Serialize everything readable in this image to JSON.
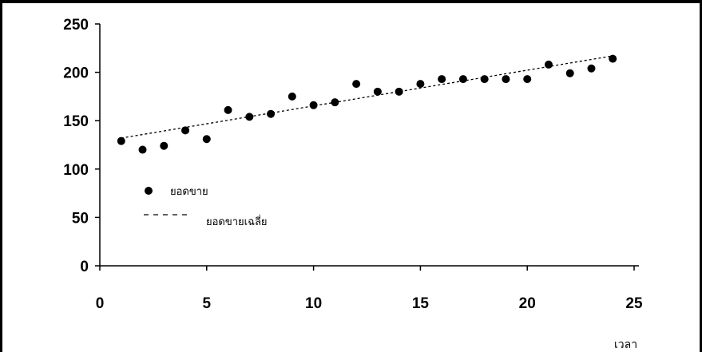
{
  "chart_data": {
    "type": "scatter",
    "title": "",
    "xlabel": "เวลา",
    "ylabel": "",
    "xlim": [
      0,
      25
    ],
    "ylim": [
      0,
      250
    ],
    "x_ticks": [
      0,
      5,
      10,
      15,
      20,
      25
    ],
    "y_ticks": [
      0,
      50,
      100,
      150,
      200,
      250
    ],
    "grid": false,
    "legend_position": "left",
    "series": [
      {
        "name": "ยอดขาย",
        "style": "marker",
        "x": [
          1,
          2,
          3,
          4,
          5,
          6,
          7,
          8,
          9,
          10,
          11,
          12,
          13,
          14,
          15,
          16,
          17,
          18,
          19,
          20,
          21,
          22,
          23,
          24
        ],
        "y": [
          129,
          120,
          124,
          140,
          131,
          161,
          154,
          157,
          175,
          166,
          169,
          188,
          180,
          180,
          188,
          193,
          193,
          193,
          193,
          193,
          208,
          199,
          204,
          214
        ]
      },
      {
        "name": "ยอดขายเฉลี่ย",
        "style": "dashed-line",
        "x": [
          1,
          24
        ],
        "y": [
          132,
          217
        ]
      }
    ]
  }
}
